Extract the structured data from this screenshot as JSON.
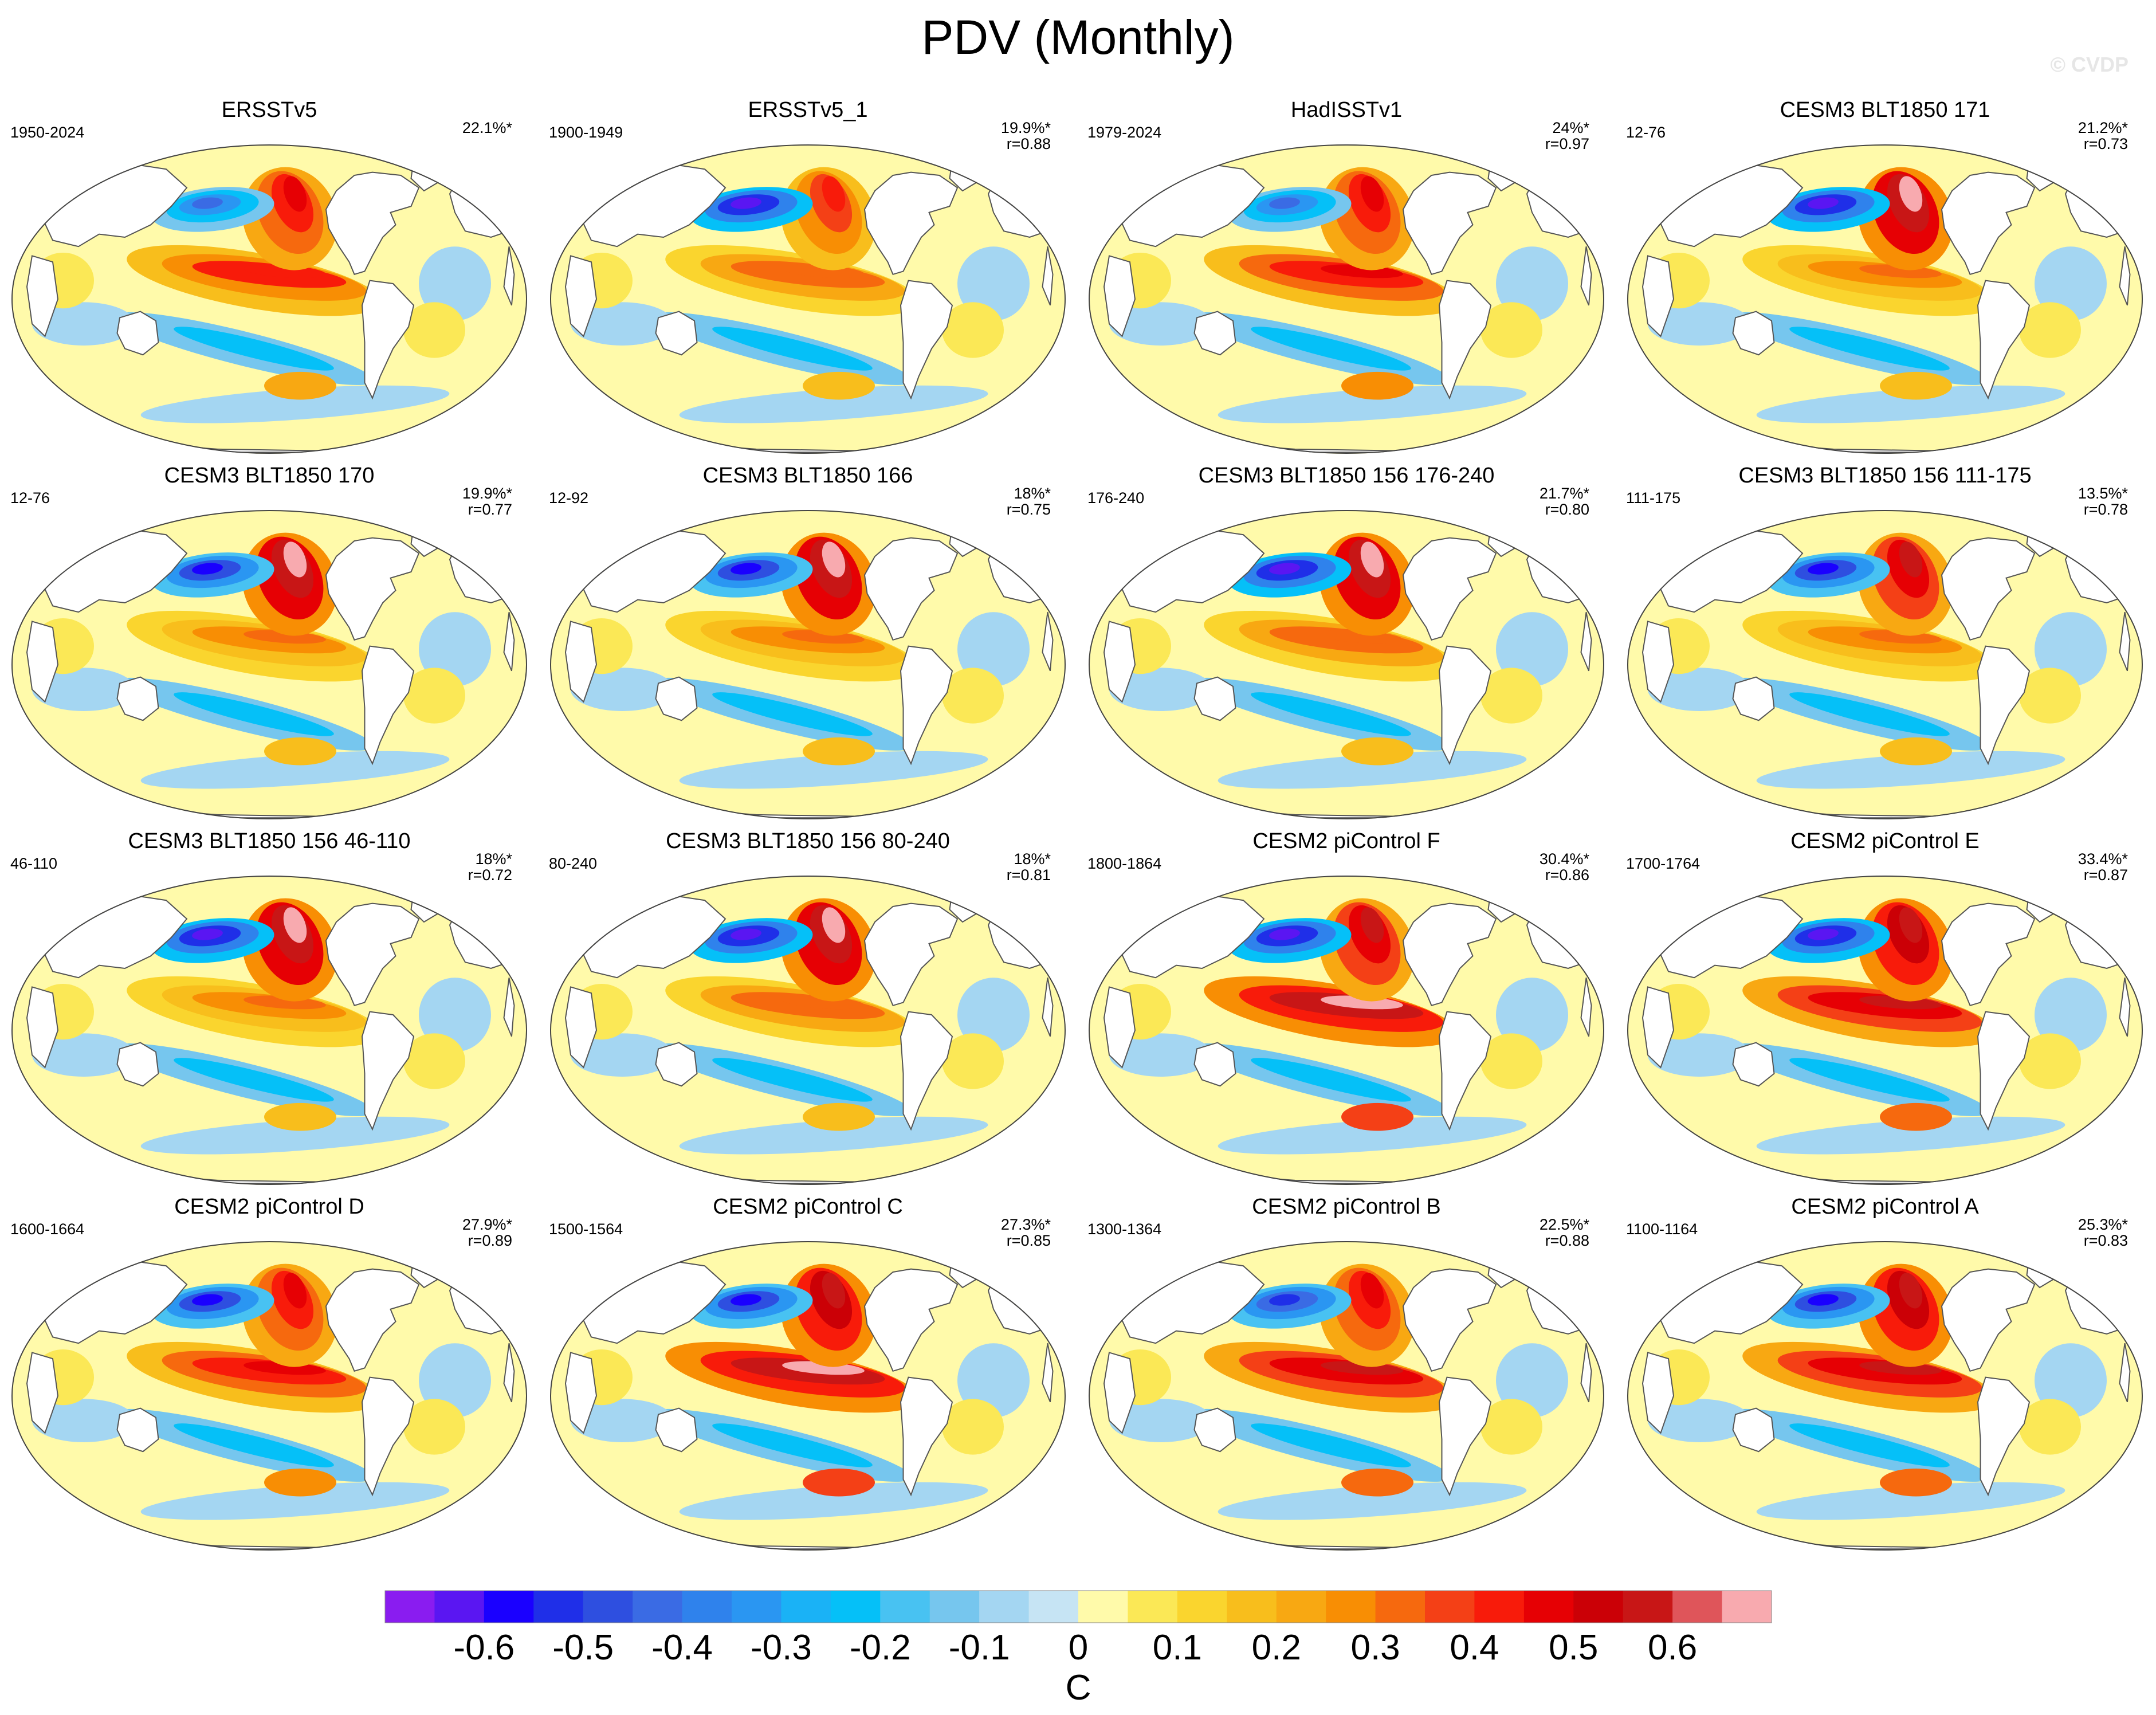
{
  "title": "PDV (Monthly)",
  "watermark": "© CVDP",
  "chart_data": {
    "type": "heatmap",
    "description_units": "C",
    "layout": "4x4 panel grid of global SST regression maps",
    "panels": [
      {
        "title": "ERSSTv5",
        "period": "1950-2024",
        "pct": "22.1%*",
        "r": "",
        "extremes": {
          "np_min": -0.4,
          "np_max": 0.5,
          "trop_max": 0.45
        }
      },
      {
        "title": "ERSSTv5_1",
        "period": "1900-1949",
        "pct": "19.9%*",
        "r": "r=0.88",
        "extremes": {
          "np_min": -0.6,
          "np_max": 0.4,
          "trop_max": 0.35
        }
      },
      {
        "title": "HadISSTv1",
        "period": "1979-2024",
        "pct": "24%*",
        "r": "r=0.97",
        "extremes": {
          "np_min": -0.4,
          "np_max": 0.5,
          "trop_max": 0.5
        }
      },
      {
        "title": "CESM3 BLT1850 171",
        "period": "12-76",
        "pct": "21.2%*",
        "r": "r=0.73",
        "extremes": {
          "np_min": -0.6,
          "np_max": 0.65,
          "trop_max": 0.3
        }
      },
      {
        "title": "CESM3 BLT1850 170",
        "period": "12-76",
        "pct": "19.9%*",
        "r": "r=0.77",
        "extremes": {
          "np_min": -0.55,
          "np_max": 0.65,
          "trop_max": 0.3
        }
      },
      {
        "title": "CESM3 BLT1850 166",
        "period": "12-92",
        "pct": "18%*",
        "r": "r=0.75",
        "extremes": {
          "np_min": -0.55,
          "np_max": 0.65,
          "trop_max": 0.3
        }
      },
      {
        "title": "CESM3 BLT1850 156 176-240",
        "period": "176-240",
        "pct": "21.7%*",
        "r": "r=0.80",
        "extremes": {
          "np_min": -0.6,
          "np_max": 0.65,
          "trop_max": 0.35
        }
      },
      {
        "title": "CESM3 BLT1850 156 111-175",
        "period": "111-175",
        "pct": "13.5%*",
        "r": "r=0.78",
        "extremes": {
          "np_min": -0.55,
          "np_max": 0.55,
          "trop_max": 0.3
        }
      },
      {
        "title": "CESM3 BLT1850 156 46-110",
        "period": "46-110",
        "pct": "18%*",
        "r": "r=0.72",
        "extremes": {
          "np_min": -0.6,
          "np_max": 0.65,
          "trop_max": 0.3
        }
      },
      {
        "title": "CESM3 BLT1850 156 80-240",
        "period": "80-240",
        "pct": "18%*",
        "r": "r=0.81",
        "extremes": {
          "np_min": -0.6,
          "np_max": 0.65,
          "trop_max": 0.35
        }
      },
      {
        "title": "CESM2 piControl F",
        "period": "1800-1864",
        "pct": "30.4%*",
        "r": "r=0.86",
        "extremes": {
          "np_min": -0.6,
          "np_max": 0.55,
          "trop_max": 0.65
        }
      },
      {
        "title": "CESM2 piControl E",
        "period": "1700-1764",
        "pct": "33.4%*",
        "r": "r=0.87",
        "extremes": {
          "np_min": -0.6,
          "np_max": 0.6,
          "trop_max": 0.55
        }
      },
      {
        "title": "CESM2 piControl D",
        "period": "1600-1664",
        "pct": "27.9%*",
        "r": "r=0.89",
        "extremes": {
          "np_min": -0.55,
          "np_max": 0.5,
          "trop_max": 0.5
        }
      },
      {
        "title": "CESM2 piControl C",
        "period": "1500-1564",
        "pct": "27.3%*",
        "r": "r=0.85",
        "extremes": {
          "np_min": -0.55,
          "np_max": 0.6,
          "trop_max": 0.65
        }
      },
      {
        "title": "CESM2 piControl B",
        "period": "1300-1364",
        "pct": "22.5%*",
        "r": "r=0.88",
        "extremes": {
          "np_min": -0.5,
          "np_max": 0.5,
          "trop_max": 0.55
        }
      },
      {
        "title": "CESM2 piControl A",
        "period": "1100-1164",
        "pct": "25.3%*",
        "r": "r=0.83",
        "extremes": {
          "np_min": -0.55,
          "np_max": 0.6,
          "trop_max": 0.55
        }
      }
    ],
    "colorbar": {
      "label": "C",
      "range": [
        -0.7,
        0.7
      ],
      "step": 0.05,
      "tick_labels": [
        "-0.6",
        "-0.5",
        "-0.4",
        "-0.3",
        "-0.2",
        "-0.1",
        "0",
        "0.1",
        "0.2",
        "0.3",
        "0.4",
        "0.5",
        "0.6"
      ],
      "tick_values": [
        -0.6,
        -0.5,
        -0.4,
        -0.3,
        -0.2,
        -0.1,
        0,
        0.1,
        0.2,
        0.3,
        0.4,
        0.5,
        0.6
      ],
      "colors": [
        "#8a1cf0",
        "#5a16f2",
        "#1a00ff",
        "#1f2fe8",
        "#2e4fe0",
        "#3a6be4",
        "#2f82ec",
        "#2a96f2",
        "#1ab2f6",
        "#05c0f8",
        "#48c2f2",
        "#76c6ee",
        "#a4d6f2",
        "#c6e4f4",
        "#fffaaa",
        "#fbe856",
        "#fad52e",
        "#f8be1c",
        "#f8a812",
        "#f88e04",
        "#f6690e",
        "#f44016",
        "#f81b0a",
        "#e60004",
        "#cb0006",
        "#c81616",
        "#df555a",
        "#f8aaaf"
      ]
    }
  }
}
